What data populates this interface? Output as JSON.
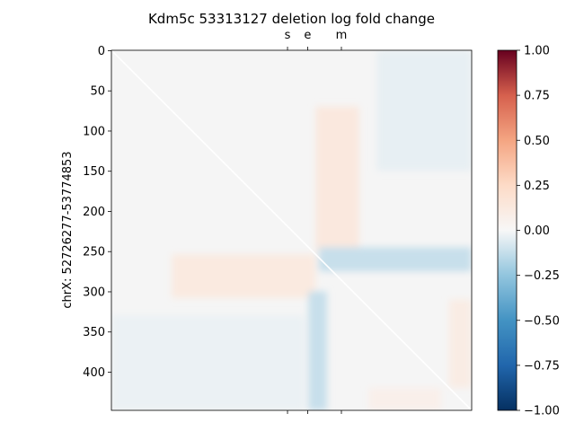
{
  "chart_data": {
    "type": "heatmap",
    "title": "Kdm5c 53313127 deletion log fold change",
    "xlabel": "",
    "ylabel": "chrX: 52726277-53774853",
    "n_bins": 448,
    "y_ticks": [
      0,
      50,
      100,
      150,
      200,
      250,
      300,
      350,
      400
    ],
    "x_top_ticks": [
      {
        "label": "s",
        "bin": 219
      },
      {
        "label": "e",
        "bin": 244
      },
      {
        "label": "m",
        "bin": 286
      }
    ],
    "colorbar": {
      "cmap": "RdBu_r",
      "vmin": -1.0,
      "vmax": 1.0,
      "ticks": [
        1.0,
        0.75,
        0.5,
        0.25,
        0.0,
        -0.25,
        -0.5,
        -0.75,
        -1.0
      ],
      "tick_labels": [
        "1.00",
        "0.75",
        "0.50",
        "0.25",
        "0.00",
        "−0.25",
        "−0.50",
        "−0.75",
        "−1.00"
      ]
    },
    "diagonal_line": true,
    "regions": [
      {
        "name": "upper-gain-block",
        "x": [
          254,
          308
        ],
        "y": [
          70,
          250
        ],
        "value": 0.13
      },
      {
        "name": "lower-gain-block",
        "x": [
          75,
          254
        ],
        "y": [
          254,
          308
        ],
        "value": 0.12
      },
      {
        "name": "right-loss-band",
        "x": [
          258,
          448
        ],
        "y": [
          245,
          275
        ],
        "value": -0.12
      },
      {
        "name": "lower-loss-band",
        "x": [
          245,
          268
        ],
        "y": [
          300,
          448
        ],
        "value": -0.12
      },
      {
        "name": "left-faint-loss",
        "x": [
          0,
          240
        ],
        "y": [
          330,
          448
        ],
        "value": -0.03
      },
      {
        "name": "upper-right-faint-loss",
        "x": [
          330,
          448
        ],
        "y": [
          0,
          150
        ],
        "value": -0.04
      },
      {
        "name": "bottom-right-gain",
        "x": [
          420,
          448
        ],
        "y": [
          310,
          420
        ],
        "value": 0.1
      },
      {
        "name": "bottom-gain",
        "x": [
          320,
          410
        ],
        "y": [
          420,
          448
        ],
        "value": 0.07
      }
    ]
  }
}
